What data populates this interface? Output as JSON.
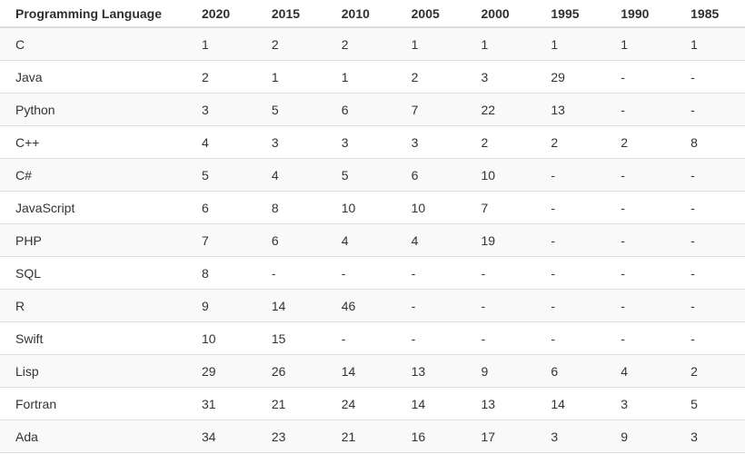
{
  "chart_data": {
    "type": "table",
    "title": "",
    "columns": [
      "Programming Language",
      "2020",
      "2015",
      "2010",
      "2005",
      "2000",
      "1995",
      "1990",
      "1985"
    ],
    "rows": [
      {
        "language": "C",
        "ranks": [
          "1",
          "2",
          "2",
          "1",
          "1",
          "1",
          "1",
          "1"
        ]
      },
      {
        "language": "Java",
        "ranks": [
          "2",
          "1",
          "1",
          "2",
          "3",
          "29",
          "-",
          "-"
        ]
      },
      {
        "language": "Python",
        "ranks": [
          "3",
          "5",
          "6",
          "7",
          "22",
          "13",
          "-",
          "-"
        ]
      },
      {
        "language": "C++",
        "ranks": [
          "4",
          "3",
          "3",
          "3",
          "2",
          "2",
          "2",
          "8"
        ]
      },
      {
        "language": "C#",
        "ranks": [
          "5",
          "4",
          "5",
          "6",
          "10",
          "-",
          "-",
          "-"
        ]
      },
      {
        "language": "JavaScript",
        "ranks": [
          "6",
          "8",
          "10",
          "10",
          "7",
          "-",
          "-",
          "-"
        ]
      },
      {
        "language": "PHP",
        "ranks": [
          "7",
          "6",
          "4",
          "4",
          "19",
          "-",
          "-",
          "-"
        ]
      },
      {
        "language": "SQL",
        "ranks": [
          "8",
          "-",
          "-",
          "-",
          "-",
          "-",
          "-",
          "-"
        ]
      },
      {
        "language": "R",
        "ranks": [
          "9",
          "14",
          "46",
          "-",
          "-",
          "-",
          "-",
          "-"
        ]
      },
      {
        "language": "Swift",
        "ranks": [
          "10",
          "15",
          "-",
          "-",
          "-",
          "-",
          "-",
          "-"
        ]
      },
      {
        "language": "Lisp",
        "ranks": [
          "29",
          "26",
          "14",
          "13",
          "9",
          "6",
          "4",
          "2"
        ]
      },
      {
        "language": "Fortran",
        "ranks": [
          "31",
          "21",
          "24",
          "14",
          "13",
          "14",
          "3",
          "5"
        ]
      },
      {
        "language": "Ada",
        "ranks": [
          "34",
          "23",
          "21",
          "16",
          "17",
          "3",
          "9",
          "3"
        ]
      }
    ],
    "layout": {
      "grid": "horizontal-row-borders-only",
      "striped_rows": "odd",
      "missing_value_marker": "-"
    }
  },
  "colors": {
    "stripe_background": "#f9f9f9",
    "row_background": "#ffffff",
    "border": "#dddddd",
    "text": "#333333"
  }
}
